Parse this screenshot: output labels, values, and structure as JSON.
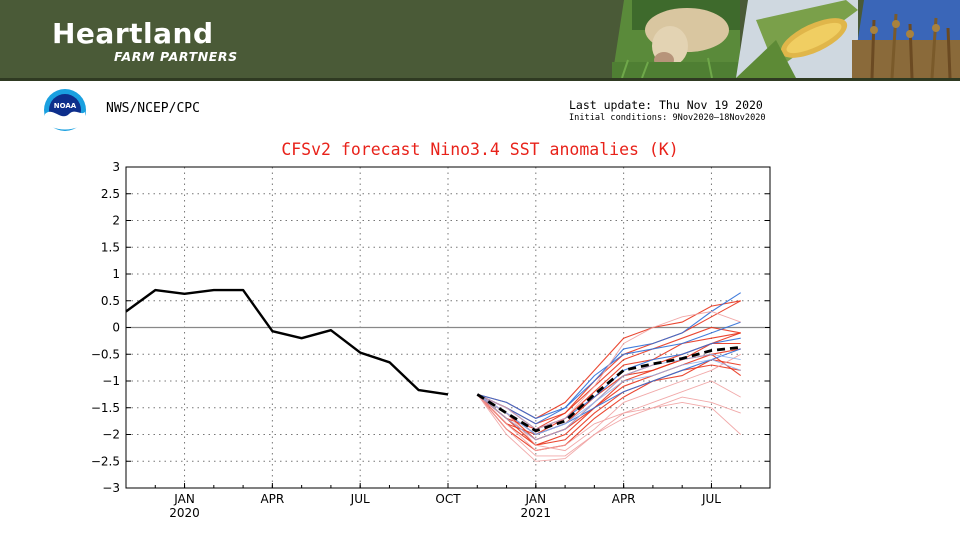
{
  "banner": {
    "brand_name": "Heartland",
    "brand_sub": "FARM PARTNERS",
    "photos": [
      "cow-photo",
      "corn-photo",
      "soybean-field-photo"
    ]
  },
  "header": {
    "agency": "NWS/NCEP/CPC",
    "logo_text": "NOAA",
    "last_update": "Last update: Thu Nov 19 2020",
    "initial_conditions": "Initial conditions: 9Nov2020–18Nov2020"
  },
  "colors": {
    "banner": "#4a5a37",
    "title": "#e8221a",
    "observed": "#000000",
    "ensemble_red": "#e8341c",
    "ensemble_blue": "#2f6fd8",
    "ensemble_pink": "#f0a0a0",
    "ensemble_lightblue": "#8fb3ee"
  },
  "chart_data": {
    "type": "line",
    "title": "CFSv2 forecast Nino3.4 SST anomalies (K)",
    "xlabel": "",
    "ylabel": "",
    "ylim": [
      -3,
      3
    ],
    "yticks": [
      3,
      2.5,
      2,
      1.5,
      1,
      0.5,
      0,
      -0.5,
      -1,
      -1.5,
      -2,
      -2.5,
      -3
    ],
    "ytick_labels": [
      "3",
      "2.5",
      "2",
      "1.5",
      "1",
      "0.5",
      "0",
      "−0.5",
      "−1",
      "−1.5",
      "−2",
      "−2.5",
      "−3"
    ],
    "xlim": [
      "2019-11",
      "2021-09"
    ],
    "xticks": [
      {
        "month": "2020-01",
        "label": "JAN",
        "year_label": "2020"
      },
      {
        "month": "2020-04",
        "label": "APR",
        "year_label": ""
      },
      {
        "month": "2020-07",
        "label": "JUL",
        "year_label": ""
      },
      {
        "month": "2020-10",
        "label": "OCT",
        "year_label": ""
      },
      {
        "month": "2021-01",
        "label": "JAN",
        "year_label": "2021"
      },
      {
        "month": "2021-04",
        "label": "APR",
        "year_label": ""
      },
      {
        "month": "2021-07",
        "label": "JUL",
        "year_label": ""
      }
    ],
    "grid": true,
    "zero_line": true,
    "observed": {
      "x": [
        "2019-11",
        "2019-12",
        "2020-01",
        "2020-02",
        "2020-03",
        "2020-04",
        "2020-05",
        "2020-06",
        "2020-07",
        "2020-08",
        "2020-09",
        "2020-10",
        "2020-11"
      ],
      "values": [
        0.3,
        0.7,
        0.63,
        0.7,
        0.7,
        -0.07,
        -0.2,
        -0.05,
        -0.47,
        -0.65,
        -1.17,
        -1.25,
        null
      ]
    },
    "ensemble_mean": {
      "x": [
        "2020-11",
        "2020-12",
        "2021-01",
        "2021-02",
        "2021-03",
        "2021-04",
        "2021-05",
        "2021-06",
        "2021-07",
        "2021-08"
      ],
      "values": [
        -1.25,
        -1.6,
        -1.93,
        -1.75,
        -1.25,
        -0.8,
        -0.68,
        -0.58,
        -0.43,
        -0.37
      ]
    },
    "members_x": [
      "2020-11",
      "2020-12",
      "2021-01",
      "2021-02",
      "2021-03",
      "2021-04",
      "2021-05",
      "2021-06",
      "2021-07",
      "2021-08"
    ],
    "members": [
      {
        "color": "ensemble_red",
        "values": [
          -1.25,
          -1.7,
          -2.1,
          -1.9,
          -1.4,
          -0.9,
          -0.7,
          -0.5,
          -0.3,
          -0.1
        ]
      },
      {
        "color": "ensemble_red",
        "values": [
          -1.25,
          -1.8,
          -2.2,
          -2.0,
          -1.5,
          -1.1,
          -0.9,
          -0.7,
          -0.5,
          -0.4
        ]
      },
      {
        "color": "ensemble_red",
        "values": [
          -1.25,
          -1.5,
          -1.8,
          -1.6,
          -1.0,
          -0.5,
          -0.3,
          -0.1,
          0.2,
          0.5
        ]
      },
      {
        "color": "ensemble_red",
        "values": [
          -1.25,
          -1.9,
          -2.3,
          -2.2,
          -1.7,
          -1.3,
          -1.0,
          -0.8,
          -0.7,
          -0.8
        ]
      },
      {
        "color": "ensemble_red",
        "values": [
          -1.25,
          -1.6,
          -2.0,
          -1.7,
          -1.2,
          -0.7,
          -0.6,
          -0.3,
          -0.2,
          -0.1
        ]
      },
      {
        "color": "ensemble_red",
        "values": [
          -1.25,
          -1.7,
          -2.2,
          -2.1,
          -1.6,
          -1.2,
          -1.0,
          -0.9,
          -0.6,
          -0.7
        ]
      },
      {
        "color": "ensemble_red",
        "values": [
          -1.25,
          -1.4,
          -1.7,
          -1.4,
          -0.8,
          -0.2,
          0.0,
          0.1,
          0.4,
          0.5
        ]
      },
      {
        "color": "ensemble_red",
        "values": [
          -1.25,
          -1.8,
          -2.0,
          -1.8,
          -1.3,
          -0.9,
          -0.8,
          -0.6,
          -0.3,
          -0.3
        ]
      },
      {
        "color": "ensemble_red",
        "values": [
          -1.25,
          -1.6,
          -2.1,
          -1.9,
          -1.5,
          -1.0,
          -0.8,
          -0.6,
          -0.5,
          -0.9
        ]
      },
      {
        "color": "ensemble_red",
        "values": [
          -1.25,
          -1.7,
          -1.9,
          -1.6,
          -1.1,
          -0.6,
          -0.4,
          -0.2,
          0.0,
          -0.1
        ]
      },
      {
        "color": "ensemble_blue",
        "values": [
          -1.25,
          -1.4,
          -1.7,
          -1.5,
          -1.0,
          -0.4,
          -0.3,
          -0.1,
          0.3,
          0.65
        ]
      },
      {
        "color": "ensemble_blue",
        "values": [
          -1.25,
          -1.5,
          -1.9,
          -1.7,
          -1.3,
          -0.8,
          -0.6,
          -0.5,
          -0.3,
          -0.2
        ]
      },
      {
        "color": "ensemble_blue",
        "values": [
          -1.25,
          -1.6,
          -2.0,
          -1.8,
          -1.5,
          -1.2,
          -1.0,
          -0.8,
          -0.6,
          -0.4
        ]
      },
      {
        "color": "ensemble_blue",
        "values": [
          -1.25,
          -1.5,
          -1.8,
          -1.5,
          -0.9,
          -0.5,
          -0.4,
          -0.3,
          -0.1,
          0.1
        ]
      },
      {
        "color": "ensemble_pink",
        "values": [
          -1.25,
          -1.9,
          -2.4,
          -2.4,
          -2.0,
          -1.7,
          -1.5,
          -1.4,
          -1.5,
          -2.0
        ]
      },
      {
        "color": "ensemble_pink",
        "values": [
          -1.25,
          -2.0,
          -2.5,
          -2.45,
          -2.0,
          -1.6,
          -1.5,
          -1.3,
          -1.4,
          -1.6
        ]
      },
      {
        "color": "ensemble_pink",
        "values": [
          -1.25,
          -1.8,
          -2.3,
          -2.2,
          -1.8,
          -1.6,
          -1.4,
          -1.2,
          -1.0,
          -1.3
        ]
      },
      {
        "color": "ensemble_pink",
        "values": [
          -1.25,
          -1.6,
          -2.2,
          -2.3,
          -1.9,
          -1.4,
          -1.2,
          -1.0,
          -0.8,
          -0.5
        ]
      },
      {
        "color": "ensemble_pink",
        "values": [
          -1.25,
          -1.5,
          -1.9,
          -1.7,
          -1.1,
          -0.3,
          0.0,
          0.2,
          0.3,
          0.1
        ]
      },
      {
        "color": "ensemble_lightblue",
        "values": [
          -1.25,
          -1.6,
          -2.0,
          -1.8,
          -1.4,
          -1.0,
          -0.9,
          -0.7,
          -0.6,
          -0.8
        ]
      },
      {
        "color": "ensemble_lightblue",
        "values": [
          -1.25,
          -1.7,
          -2.1,
          -1.9,
          -1.4,
          -0.9,
          -0.7,
          -0.6,
          -0.5,
          -0.6
        ]
      }
    ]
  }
}
